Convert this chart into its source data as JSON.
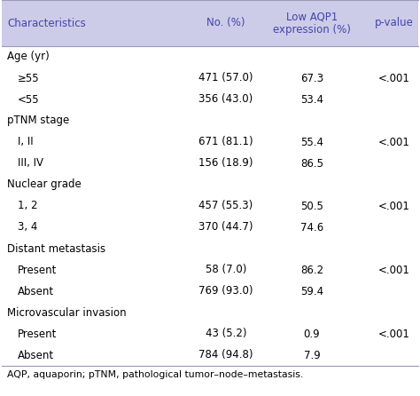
{
  "header_bg": "#cccce8",
  "header_text_color": "#4444aa",
  "body_bg": "#ffffff",
  "header_row": [
    "Characteristics",
    "No. (%)",
    "Low AQP1\nexpression (%)",
    "p-value"
  ],
  "rows": [
    {
      "label": "Age (yr)",
      "indent": 0,
      "no": "",
      "expr": "",
      "pval": ""
    },
    {
      "label": "≥55",
      "indent": 1,
      "no": "471 (57.0)",
      "expr": "67.3",
      "pval": "<.001"
    },
    {
      "label": "<55",
      "indent": 1,
      "no": "356 (43.0)",
      "expr": "53.4",
      "pval": ""
    },
    {
      "label": "pTNM stage",
      "indent": 0,
      "no": "",
      "expr": "",
      "pval": ""
    },
    {
      "label": "I, II",
      "indent": 1,
      "no": "671 (81.1)",
      "expr": "55.4",
      "pval": "<.001"
    },
    {
      "label": "III, IV",
      "indent": 1,
      "no": "156 (18.9)",
      "expr": "86.5",
      "pval": ""
    },
    {
      "label": "Nuclear grade",
      "indent": 0,
      "no": "",
      "expr": "",
      "pval": ""
    },
    {
      "label": "1, 2",
      "indent": 1,
      "no": "457 (55.3)",
      "expr": "50.5",
      "pval": "<.001"
    },
    {
      "label": "3, 4",
      "indent": 1,
      "no": "370 (44.7)",
      "expr": "74.6",
      "pval": ""
    },
    {
      "label": "Distant metastasis",
      "indent": 0,
      "no": "",
      "expr": "",
      "pval": ""
    },
    {
      "label": "Present",
      "indent": 1,
      "no": "58 (7.0)",
      "expr": "86.2",
      "pval": "<.001"
    },
    {
      "label": "Absent",
      "indent": 1,
      "no": "769 (93.0)",
      "expr": "59.4",
      "pval": ""
    },
    {
      "label": "Microvascular invasion",
      "indent": 0,
      "no": "",
      "expr": "",
      "pval": ""
    },
    {
      "label": "Present",
      "indent": 1,
      "no": "43 (5.2)",
      "expr": "0.9",
      "pval": "<.001"
    },
    {
      "label": "Absent",
      "indent": 1,
      "no": "784 (94.8)",
      "expr": "7.9",
      "pval": ""
    }
  ],
  "footer": "AQP, aquaporin; pTNM, pathological tumor–node–metastasis.",
  "header_fontsize": 8.5,
  "body_fontsize": 8.5,
  "footer_fontsize": 7.8,
  "line_color": "#9999bb",
  "header_color": "#4444aa",
  "indent_size": 12
}
